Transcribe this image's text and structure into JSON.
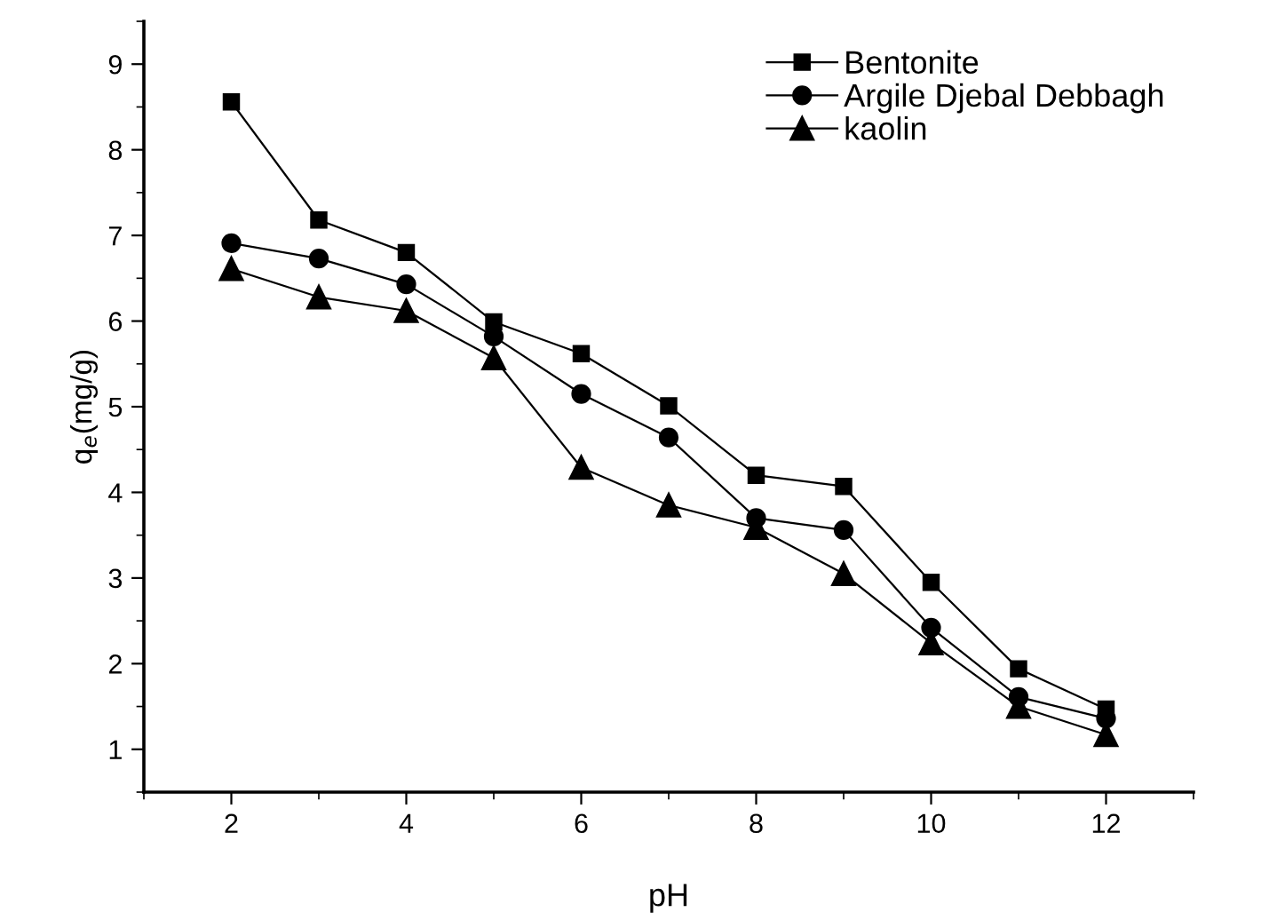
{
  "chart_data": {
    "type": "line",
    "xlabel": "pH",
    "ylabel": "q$_{e}$(mg/g)",
    "x": [
      2,
      3,
      4,
      5,
      6,
      7,
      8,
      9,
      10,
      11,
      12
    ],
    "xlim": [
      1,
      13
    ],
    "xticks": [
      2,
      4,
      6,
      8,
      10,
      12
    ],
    "ylim": [
      0.5,
      9.5
    ],
    "yticks": [
      1,
      2,
      3,
      4,
      5,
      6,
      7,
      8,
      9
    ],
    "grid": false,
    "legend": "top right",
    "line_style": "solid",
    "series": [
      {
        "name": "Bentonite",
        "color": "#000000",
        "marker": "square",
        "values": [
          8.56,
          7.18,
          6.8,
          5.99,
          5.62,
          5.01,
          4.2,
          4.07,
          2.95,
          1.94,
          1.47
        ]
      },
      {
        "name": "Argile Djebal Debbagh",
        "color": "#000000",
        "marker": "circle",
        "values": [
          6.91,
          6.73,
          6.43,
          5.82,
          5.15,
          4.64,
          3.7,
          3.56,
          2.42,
          1.61,
          1.36
        ]
      },
      {
        "name": "kaolin",
        "color": "#000000",
        "marker": "triangle",
        "values": [
          6.61,
          6.28,
          6.12,
          5.57,
          4.29,
          3.85,
          3.59,
          3.05,
          2.24,
          1.5,
          1.17
        ]
      }
    ]
  }
}
